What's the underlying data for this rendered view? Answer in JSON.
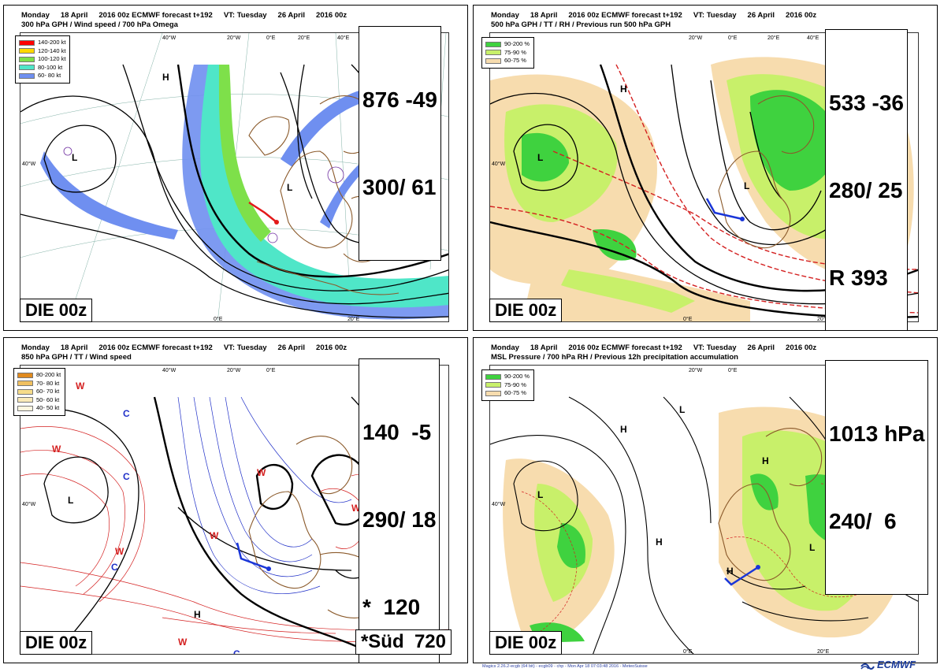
{
  "panels": [
    {
      "id": "p1",
      "header": {
        "day": "Monday",
        "date": "18 April",
        "run": "2016 00z ECMWF forecast t+192",
        "vt": "VT: Tuesday",
        "vdate": "26 April",
        "vrun": "2016 00z",
        "subtitle": "300 hPa GPH / Wind speed / 700 hPa Omega"
      },
      "legend": [
        {
          "label": "140-200 kt",
          "color": "#ff0000"
        },
        {
          "label": "120-140 kt",
          "color": "#ffd800"
        },
        {
          "label": "100-120 kt",
          "color": "#7ee04a"
        },
        {
          "label": "80-100 kt",
          "color": "#4fe6c8"
        },
        {
          "label": "60- 80 kt",
          "color": "#6f8ff0"
        }
      ],
      "values": [
        "876 -49",
        "300/ 61"
      ],
      "station_label": "DIE 00z",
      "bottom_label": ""
    },
    {
      "id": "p2",
      "header": {
        "day": "Monday",
        "date": "18 April",
        "run": "2016 00z ECMWF forecast t+192",
        "vt": "VT: Tuesday",
        "vdate": "26 April",
        "vrun": "2016 00z",
        "subtitle": "500 hPa GPH / TT / RH / Previous run 500 hPa GPH"
      },
      "legend": [
        {
          "label": "90-200 %",
          "color": "#3fd23f"
        },
        {
          "label": "75-90 %",
          "color": "#c8f06a"
        },
        {
          "label": "60-75 %",
          "color": "#f7dcae"
        }
      ],
      "values": [
        "533 -36",
        "280/ 25",
        "R 393"
      ],
      "station_label": "DIE 00z",
      "bottom_label": ""
    },
    {
      "id": "p3",
      "header": {
        "day": "Monday",
        "date": "18 April",
        "run": "2016 00z ECMWF forecast t+192",
        "vt": "VT: Tuesday",
        "vdate": "26 April",
        "vrun": "2016 00z",
        "subtitle": "850 hPa GPH / TT / Wind speed"
      },
      "legend": [
        {
          "label": "80-200 kt",
          "color": "#e08a1e"
        },
        {
          "label": "70- 80 kt",
          "color": "#f0c060"
        },
        {
          "label": "60- 70 kt",
          "color": "#f6dc8a"
        },
        {
          "label": "50- 60 kt",
          "color": "#faeab8"
        },
        {
          "label": "40- 50 kt",
          "color": "#fdf6e0"
        }
      ],
      "values": [
        "140  -5",
        "290/ 18",
        "*  120"
      ],
      "station_label": "DIE 00z",
      "bottom_label": "*Süd  720"
    },
    {
      "id": "p4",
      "header": {
        "day": "Monday",
        "date": "18 April",
        "run": "2016 00z ECMWF forecast t+192",
        "vt": "VT: Tuesday",
        "vdate": "26 April",
        "vrun": "2016 00z",
        "subtitle": "MSL Pressure / 700 hPa RH / Previous 12h precipitation accumulation"
      },
      "legend": [
        {
          "label": "90-200 %",
          "color": "#3fd23f"
        },
        {
          "label": "75-90 %",
          "color": "#c8f06a"
        },
        {
          "label": "60-75 %",
          "color": "#f7dcae"
        }
      ],
      "values": [
        "1013 hPa",
        "240/  6"
      ],
      "station_label": "DIE 00z",
      "bottom_label": ""
    }
  ],
  "map_labels": {
    "w40": "40°W",
    "w20": "20°W",
    "e0": "0°E",
    "e20": "20°E",
    "e40": "40°E",
    "n40w": "40°W"
  },
  "footer": {
    "note": "Magics 2.26.2-ecgb (64 bit) - ecgb09 - chp - Mon Apr 18 07:03:48 2016 - MeteoSuisse",
    "logo": "ECMWF"
  },
  "colors": {
    "contour": "#000000",
    "coast": "#8b5a2b",
    "grid": "#2e7d6b",
    "temp_red": "#d42020",
    "temp_blue": "#2030c8",
    "omega": "#7030a0"
  }
}
